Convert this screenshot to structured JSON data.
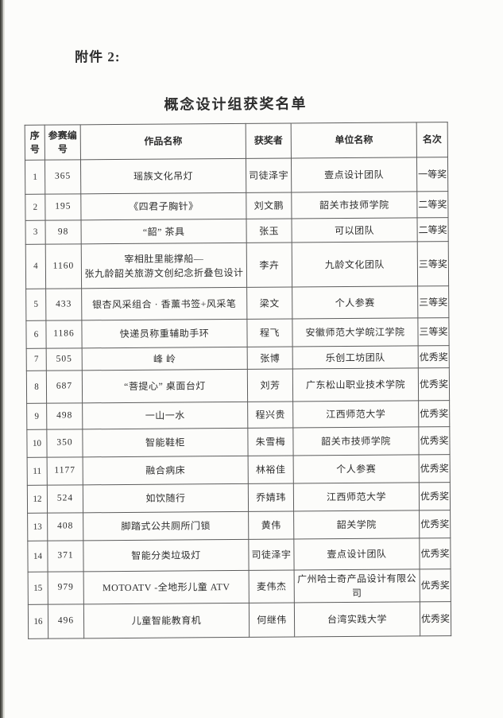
{
  "colors": {
    "paper": "#fcfcfa",
    "ink": "#2d2d2d",
    "border": "#5c5c5c",
    "edge": "#45453f"
  },
  "page": {
    "attachment_label": "附件 2:",
    "title": "概念设计组获奖名单"
  },
  "table": {
    "headers": [
      "序\n号",
      "参赛编\n号",
      "作品名称",
      "获奖者",
      "单位名称",
      "名次"
    ],
    "rows": [
      {
        "no": "1",
        "entry": "365",
        "work": "瑶族文化吊灯",
        "winner": "司徒泽宇",
        "org": "壹点设计团队",
        "award": "一等奖"
      },
      {
        "no": "2",
        "entry": "195",
        "work": "《四君子胸针》",
        "winner": "刘文鹏",
        "org": "韶关市技师学院",
        "award": "二等奖"
      },
      {
        "no": "3",
        "entry": "98",
        "work": "“韶” 茶具",
        "winner": "张玉",
        "org": "可以团队",
        "award": "二等奖"
      },
      {
        "no": "4",
        "entry": "1160",
        "work": "宰相肚里能撑船—\n张九龄韶关旅游文创纪念折叠包设计",
        "winner": "李卉",
        "org": "九龄文化团队",
        "award": "三等奖"
      },
      {
        "no": "5",
        "entry": "433",
        "work": "银杏风采组合 · 香薰书签+风采笔",
        "winner": "梁文",
        "org": "个人参赛",
        "award": "三等奖"
      },
      {
        "no": "6",
        "entry": "1186",
        "work": "快递员称重辅助手环",
        "winner": "程飞",
        "org": "安徽师范大学皖江学院",
        "award": "三等奖"
      },
      {
        "no": "7",
        "entry": "505",
        "work": "峰 岭",
        "winner": "张博",
        "org": "乐创工坊团队",
        "award": "优秀奖"
      },
      {
        "no": "8",
        "entry": "687",
        "work": "“菩提心” 桌面台灯",
        "winner": "刘芳",
        "org": "广东松山职业技术学院",
        "award": "优秀奖"
      },
      {
        "no": "9",
        "entry": "498",
        "work": "一山一水",
        "winner": "程兴贵",
        "org": "江西师范大学",
        "award": "优秀奖"
      },
      {
        "no": "10",
        "entry": "350",
        "work": "智能鞋柜",
        "winner": "朱雪梅",
        "org": "韶关市技师学院",
        "award": "优秀奖"
      },
      {
        "no": "11",
        "entry": "1177",
        "work": "融合病床",
        "winner": "林裕佳",
        "org": "个人参赛",
        "award": "优秀奖"
      },
      {
        "no": "12",
        "entry": "524",
        "work": "如饮随行",
        "winner": "乔婧玮",
        "org": "江西师范大学",
        "award": "优秀奖"
      },
      {
        "no": "13",
        "entry": "408",
        "work": "脚踏式公共厕所门锁",
        "winner": "黄伟",
        "org": "韶关学院",
        "award": "优秀奖"
      },
      {
        "no": "14",
        "entry": "371",
        "work": "智能分类垃圾灯",
        "winner": "司徒泽宇",
        "org": "壹点设计团队",
        "award": "优秀奖"
      },
      {
        "no": "15",
        "entry": "979",
        "work": "MOTOATV -全地形儿童 ATV",
        "winner": "麦伟杰",
        "org": "广州哈士奇产品设计有限公司",
        "award": "优秀奖"
      },
      {
        "no": "16",
        "entry": "496",
        "work": "儿童智能教育机",
        "winner": "何继伟",
        "org": "台湾实践大学",
        "award": "优秀奖"
      }
    ]
  }
}
